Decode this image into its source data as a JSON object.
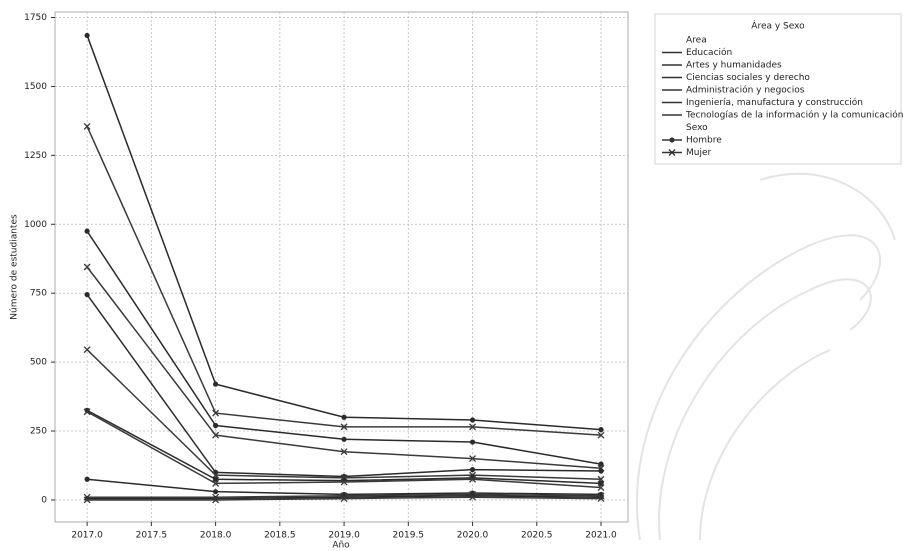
{
  "chart_data": {
    "type": "line",
    "x_label": "Año",
    "y_label": "Número de estudiantes",
    "x": [
      2017,
      2018,
      2019,
      2020,
      2021
    ],
    "xlim": [
      2016.75,
      2021.21
    ],
    "ylim": [
      -80,
      1770
    ],
    "xticks": [
      {
        "value": 2017,
        "label": "2017.0"
      },
      {
        "value": 2017.5,
        "label": "2017.5"
      },
      {
        "value": 2018,
        "label": "2018.0"
      },
      {
        "value": 2018.5,
        "label": "2018.5"
      },
      {
        "value": 2019,
        "label": "2019.0"
      },
      {
        "value": 2019.5,
        "label": "2019.5"
      },
      {
        "value": 2020,
        "label": "2020.0"
      },
      {
        "value": 2020.5,
        "label": "2020.5"
      },
      {
        "value": 2021,
        "label": "2021.0"
      }
    ],
    "yticks": [
      0,
      250,
      500,
      750,
      1000,
      1250,
      1500,
      1750
    ],
    "grid": true,
    "series": [
      {
        "color": "#2b2b2b",
        "marker": "o",
        "values": [
          1685,
          420,
          300,
          290,
          255
        ]
      },
      {
        "color": "#3a3a3a",
        "marker": "x",
        "values": [
          1355,
          315,
          265,
          265,
          235
        ]
      },
      {
        "color": "#2b2b2b",
        "marker": "o",
        "values": [
          975,
          270,
          220,
          210,
          130
        ]
      },
      {
        "color": "#3a3a3a",
        "marker": "x",
        "values": [
          845,
          235,
          175,
          150,
          115
        ]
      },
      {
        "color": "#2b2b2b",
        "marker": "o",
        "values": [
          745,
          100,
          85,
          110,
          105
        ]
      },
      {
        "color": "#3a3a3a",
        "marker": "x",
        "values": [
          545,
          90,
          80,
          90,
          75
        ]
      },
      {
        "color": "#2b2b2b",
        "marker": "o",
        "values": [
          325,
          75,
          70,
          80,
          60
        ]
      },
      {
        "color": "#3a3a3a",
        "marker": "x",
        "values": [
          320,
          60,
          65,
          75,
          45
        ]
      },
      {
        "color": "#2b2b2b",
        "marker": "o",
        "values": [
          75,
          30,
          20,
          25,
          20
        ]
      },
      {
        "color": "#3a3a3a",
        "marker": "x",
        "values": [
          10,
          10,
          15,
          20,
          15
        ]
      },
      {
        "color": "#2b2b2b",
        "marker": "o",
        "values": [
          5,
          5,
          10,
          15,
          10
        ]
      },
      {
        "color": "#3a3a3a",
        "marker": "x",
        "values": [
          0,
          0,
          5,
          10,
          5
        ]
      }
    ],
    "legend": {
      "title": "Área y Sexo",
      "sections": [
        {
          "title": "Area",
          "items": [
            {
              "label": "Educación"
            },
            {
              "label": "Artes y humanidades"
            },
            {
              "label": "Ciencias sociales y derecho"
            },
            {
              "label": "Administración y negocios"
            },
            {
              "label": "Ingeniería, manufactura y construcción"
            },
            {
              "label": "Tecnologías de la información y la comunicación"
            }
          ]
        },
        {
          "title": "Sexo",
          "items": [
            {
              "label": "Hombre",
              "marker": "o"
            },
            {
              "label": "Mujer",
              "marker": "x"
            }
          ]
        }
      ]
    }
  }
}
